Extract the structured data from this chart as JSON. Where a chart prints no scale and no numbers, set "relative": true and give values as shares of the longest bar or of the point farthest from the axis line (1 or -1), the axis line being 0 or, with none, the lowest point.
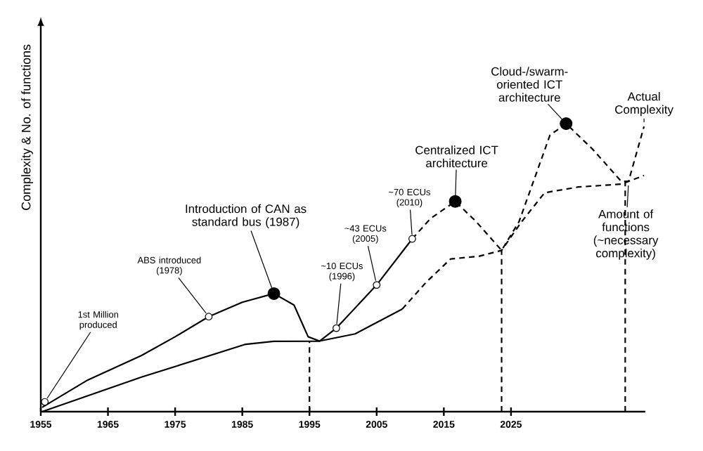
{
  "chart_data": {
    "type": "line",
    "relative": true,
    "ylabel": "Complexity & No. of functions",
    "xlim": [
      1955,
      2045
    ],
    "xticks": [
      1955,
      1965,
      1975,
      1985,
      1995,
      2005,
      2015,
      2025
    ],
    "series": [
      {
        "type": "line",
        "color": "#000000",
        "line_style": "solid",
        "x": [
          1955.2,
          1962,
          1970,
          1975,
          1980,
          1985,
          1989.7,
          1992.7,
          1994.8,
          1996.5,
          1999,
          2005,
          2010.3
        ],
        "values": [
          0.015,
          0.11,
          0.195,
          0.26,
          0.33,
          0.38,
          0.41,
          0.37,
          0.26,
          0.245,
          0.29,
          0.44,
          0.6
        ]
      },
      {
        "type": "line",
        "color": "#000000",
        "line_style": "dashed",
        "x": [
          2010.3,
          2013,
          2016.7,
          2019.8,
          2023.6,
          2026.2,
          2030.8,
          2033.2,
          2037.2,
          2041.4,
          2042.5,
          2044.8
        ],
        "values": [
          0.6,
          0.67,
          0.73,
          0.66,
          0.56,
          0.66,
          0.96,
          1.0,
          0.91,
          0.8,
          0.8,
          0.99
        ]
      },
      {
        "type": "line",
        "color": "#000000",
        "line_style": "solid",
        "x": [
          1955.2,
          1970,
          1985.5,
          1989.7,
          1996.5,
          2001.8,
          2008.8
        ],
        "values": [
          0.0,
          0.12,
          0.234,
          0.244,
          0.245,
          0.27,
          0.356
        ]
      },
      {
        "type": "line",
        "color": "#000000",
        "line_style": "dashed",
        "x": [
          2008.8,
          2012.4,
          2016,
          2020.3,
          2023.6,
          2026.6,
          2030,
          2035,
          2041.4,
          2044.8
        ],
        "values": [
          0.356,
          0.45,
          0.53,
          0.54,
          0.56,
          0.66,
          0.76,
          0.78,
          0.79,
          0.82
        ]
      },
      {
        "type": "line",
        "color": "#000000",
        "line_style": "dashed",
        "x": [
          1995,
          1995
        ],
        "values": [
          0,
          0.245
        ]
      },
      {
        "type": "line",
        "color": "#000000",
        "line_style": "dashed",
        "x": [
          2023.6,
          2023.6
        ],
        "values": [
          0,
          0.56
        ]
      },
      {
        "type": "line",
        "color": "#000000",
        "line_style": "dashed",
        "x": [
          2042,
          2042
        ],
        "values": [
          0,
          0.8
        ]
      },
      {
        "type": "scatter",
        "color": "#ffffff",
        "marker": "circle",
        "x": [
          1955.6,
          1980,
          1999,
          2005,
          2010.3
        ],
        "values": [
          0.034,
          0.33,
          0.29,
          0.44,
          0.6
        ]
      },
      {
        "type": "scatter",
        "color": "#000000",
        "marker": "circle",
        "x": [
          1989.7,
          2016.7,
          2033.2
        ],
        "values": [
          0.41,
          0.73,
          1.0
        ]
      }
    ],
    "annotations": [
      {
        "text": "1st Million produced",
        "x": 1955.6,
        "y": 0.034
      },
      {
        "text": "ABS introduced (1978)",
        "x": 1980,
        "y": 0.33
      },
      {
        "text": "Introduction of CAN as standard bus (1987)",
        "x": 1989.7,
        "y": 0.41
      },
      {
        "text": "~10 ECUs (1996)",
        "x": 1999,
        "y": 0.29
      },
      {
        "text": "~43 ECUs (2005)",
        "x": 2005,
        "y": 0.44
      },
      {
        "text": "~70 ECUs (2010)",
        "x": 2010.3,
        "y": 0.6
      },
      {
        "text": "Centralized ICT architecture",
        "x": 2016.7,
        "y": 0.73
      },
      {
        "text": "Cloud-/swarm-oriented ICT architecture",
        "x": 2033.2,
        "y": 1.0
      },
      {
        "text": "Actual Complexity",
        "x": 2044.8,
        "y": 0.99
      },
      {
        "text": "Amount of functions (~necessary complexity)",
        "x": 2042.5,
        "y": 0.8
      }
    ]
  }
}
